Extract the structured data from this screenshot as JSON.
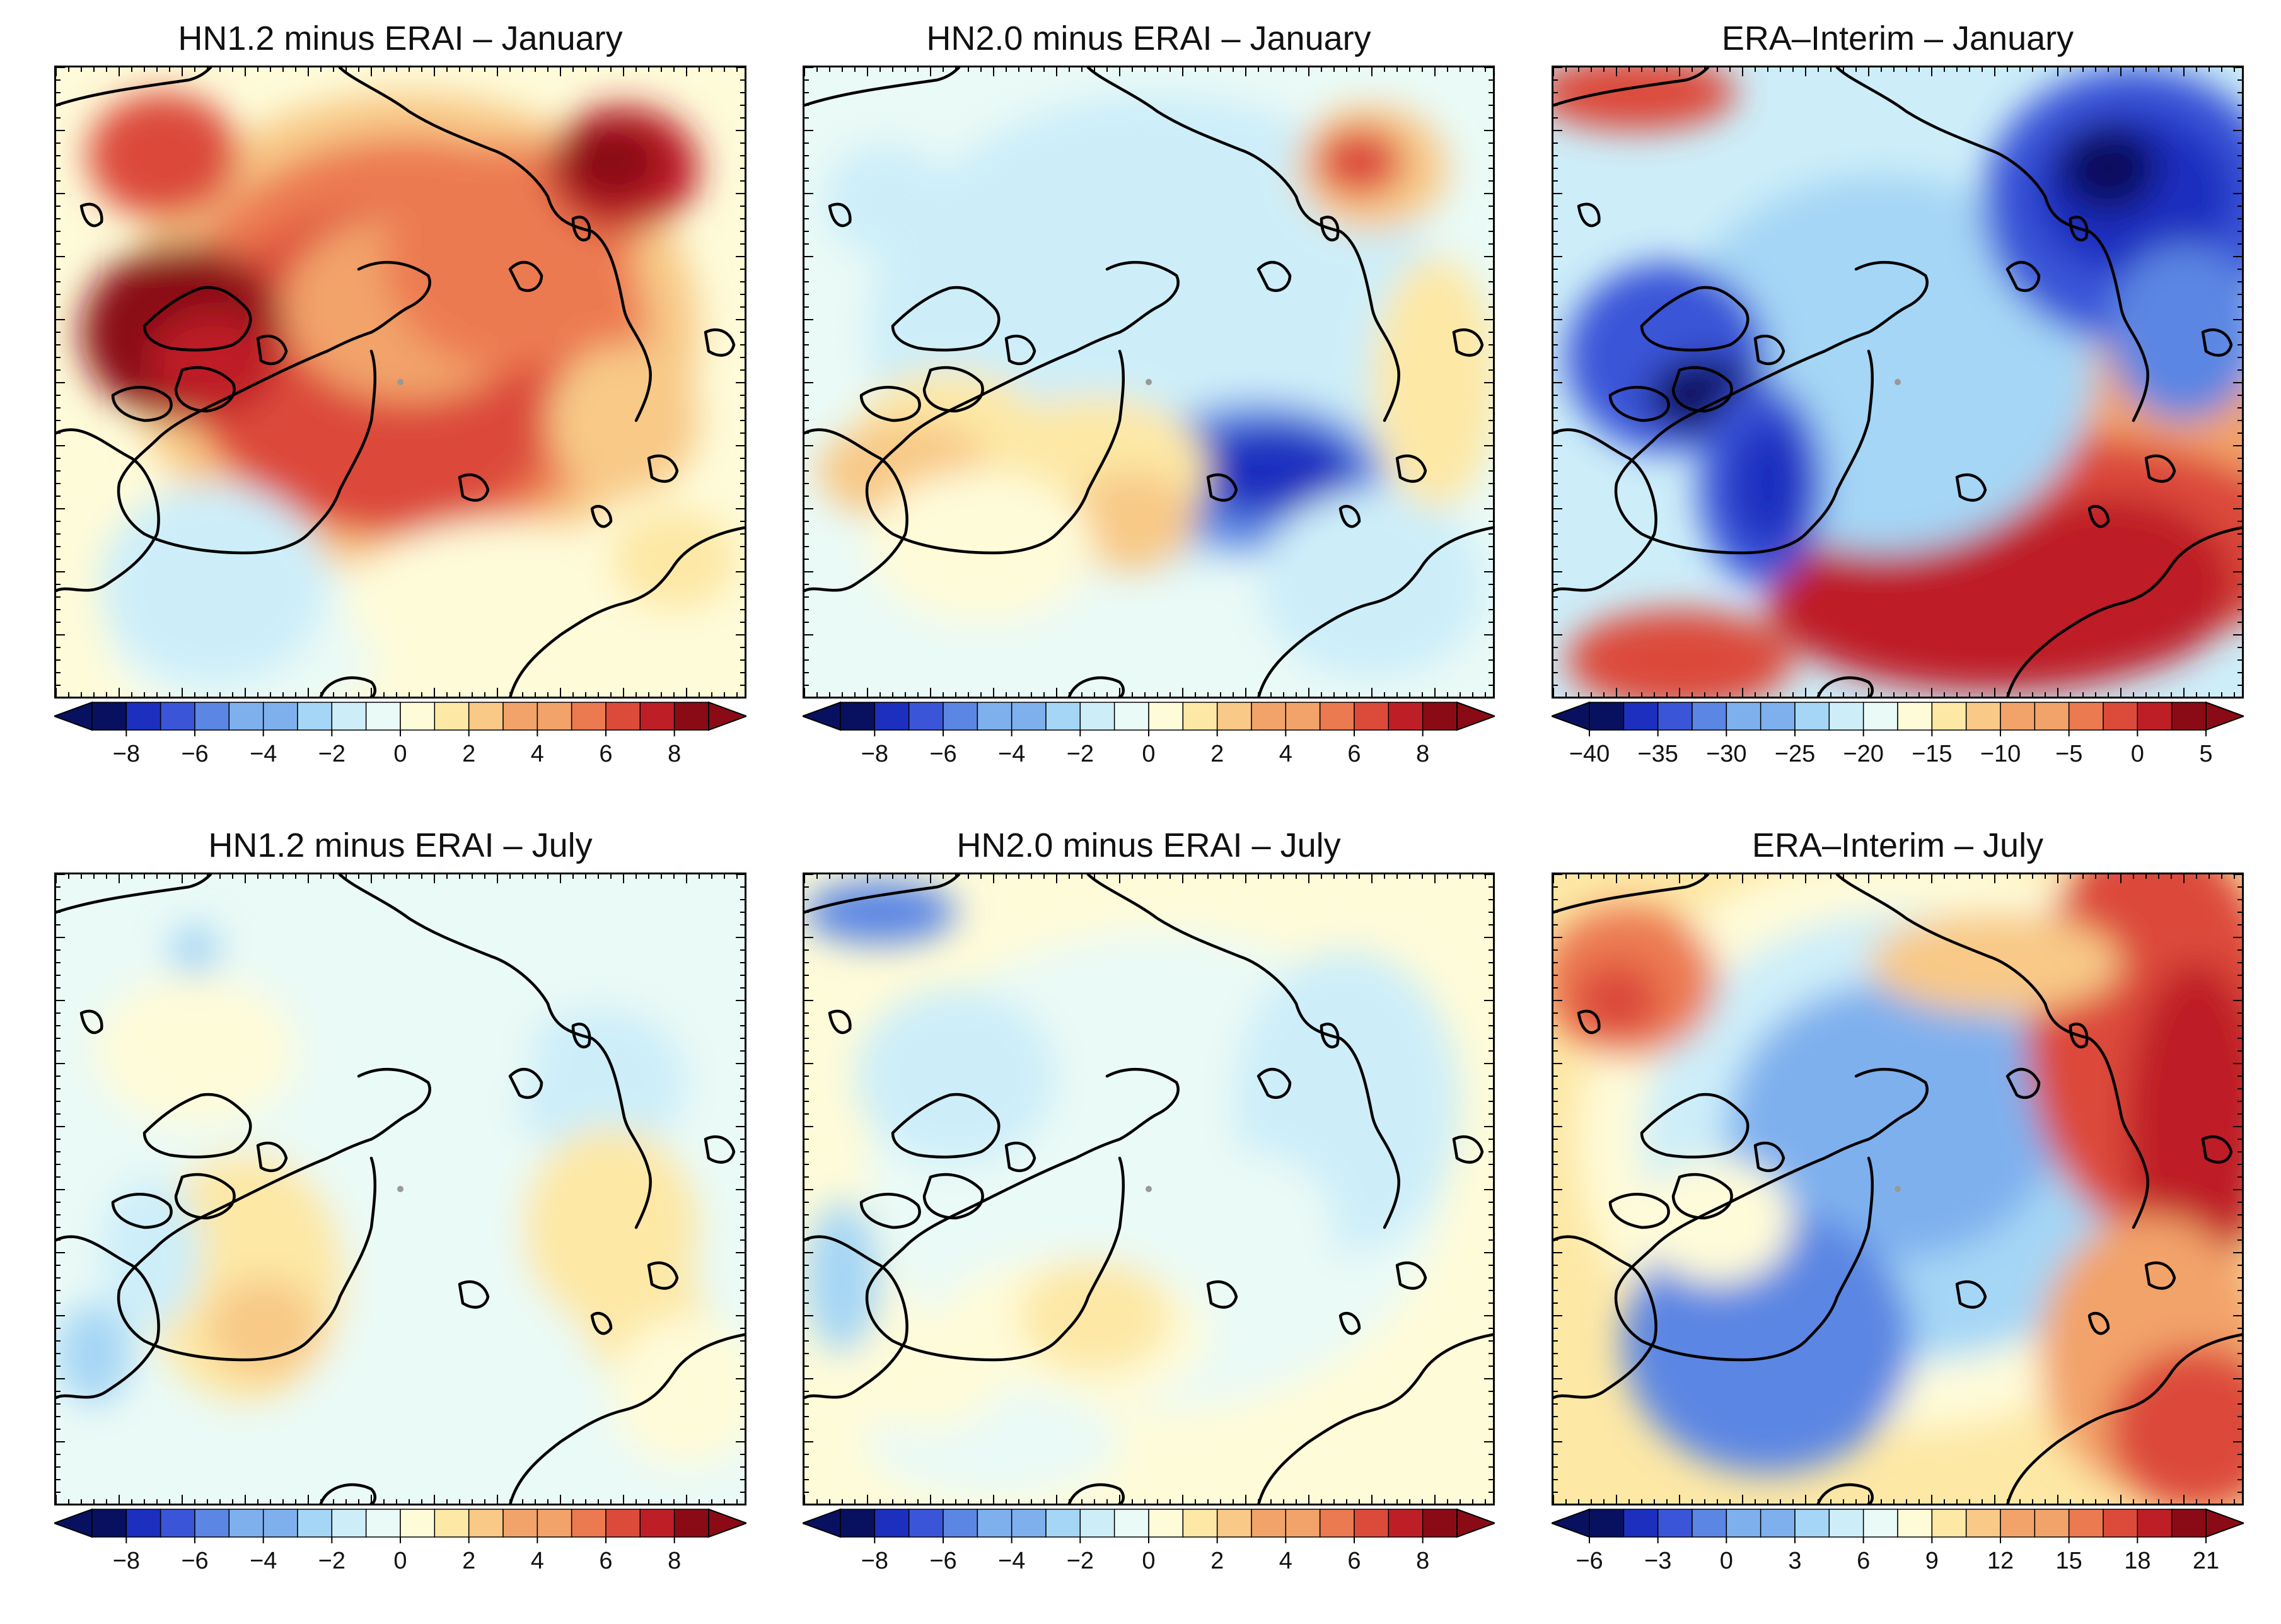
{
  "figure": {
    "description": "Arctic polar stereographic maps of temperature: model minus ERA-Interim differences and ERA-Interim climatology for January and July"
  },
  "palette": [
    "#08115f",
    "#1c2fbf",
    "#3a55d8",
    "#5b86e3",
    "#7fb0ee",
    "#a5d6f5",
    "#cdeef9",
    "#eafaf6",
    "#fefbd9",
    "#fde8a6",
    "#f8c987",
    "#f2a36a",
    "#ec7a51",
    "#dc4a3a",
    "#be1f27",
    "#8a0b16"
  ],
  "coastline_color": "#000000",
  "panels": [
    {
      "id": "hn12-jan",
      "title": "HN1.2 minus ERAI – January",
      "field": "difference",
      "colorbar": {
        "ticks": [
          "−8",
          "−6",
          "−4",
          "−2",
          "0",
          "2",
          "4",
          "6",
          "8"
        ],
        "min": -9,
        "max": 9,
        "interval": 1
      }
    },
    {
      "id": "hn20-jan",
      "title": "HN2.0 minus ERAI – January",
      "field": "difference",
      "colorbar": {
        "ticks": [
          "−8",
          "−6",
          "−4",
          "−2",
          "0",
          "2",
          "4",
          "6",
          "8"
        ],
        "min": -9,
        "max": 9,
        "interval": 1
      }
    },
    {
      "id": "erai-jan",
      "title": "ERA–Interim – January",
      "field": "absolute",
      "colorbar": {
        "ticks": [
          "−40",
          "−35",
          "−30",
          "−25",
          "−20",
          "−15",
          "−10",
          "−5",
          "0",
          "5"
        ],
        "min": -40,
        "max": 5,
        "interval": 2.5
      }
    },
    {
      "id": "hn12-jul",
      "title": "HN1.2 minus ERAI – July",
      "field": "difference",
      "colorbar": {
        "ticks": [
          "−8",
          "−6",
          "−4",
          "−2",
          "0",
          "2",
          "4",
          "6",
          "8"
        ],
        "min": -9,
        "max": 9,
        "interval": 1
      }
    },
    {
      "id": "hn20-jul",
      "title": "HN2.0 minus ERAI – July",
      "field": "difference",
      "colorbar": {
        "ticks": [
          "−8",
          "−6",
          "−4",
          "−2",
          "0",
          "2",
          "4",
          "6",
          "8"
        ],
        "min": -9,
        "max": 9,
        "interval": 1
      }
    },
    {
      "id": "erai-jul",
      "title": "ERA–Interim – July",
      "field": "absolute",
      "colorbar": {
        "ticks": [
          "−6",
          "−3",
          "0",
          "3",
          "6",
          "9",
          "12",
          "15",
          "18",
          "21"
        ],
        "min": -6,
        "max": 21,
        "interval": 1.5
      }
    }
  ]
}
